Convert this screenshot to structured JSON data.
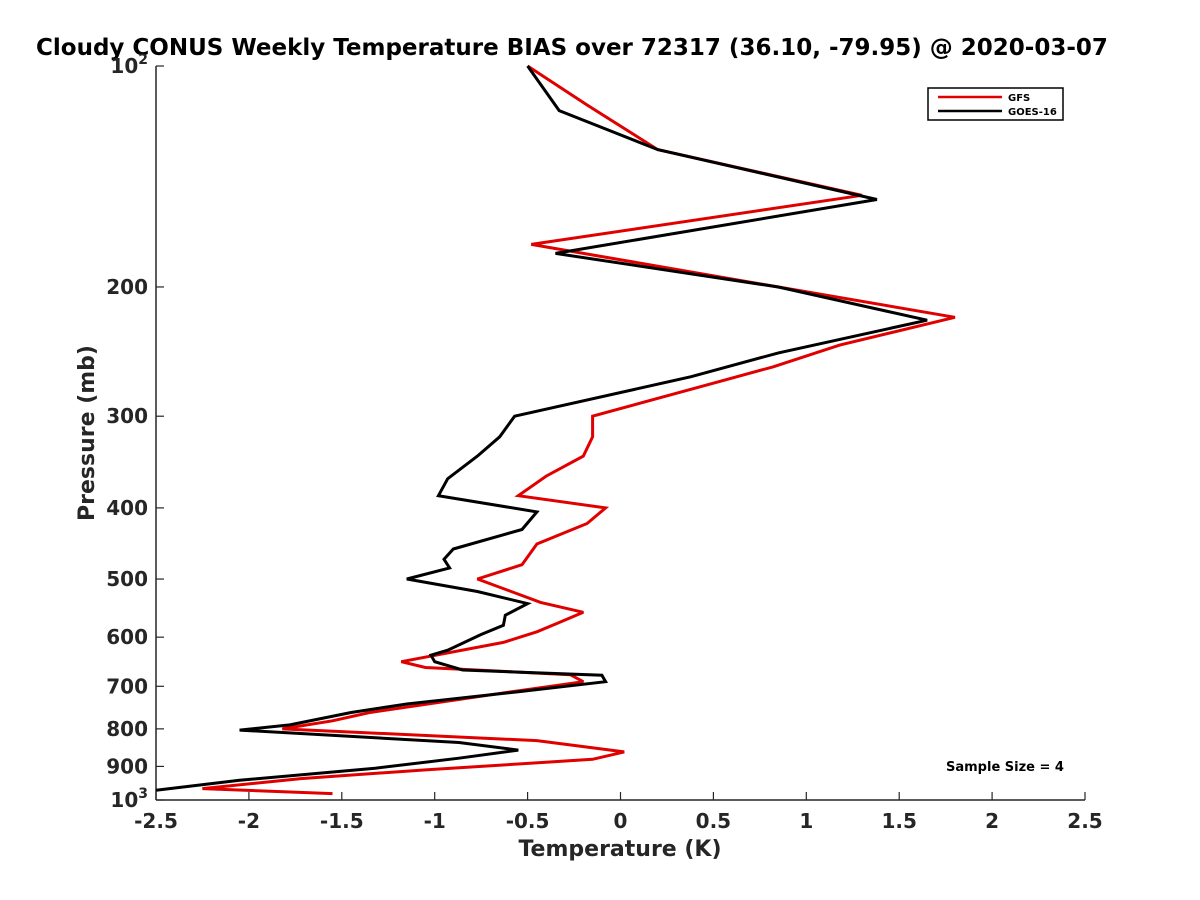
{
  "chart_data": {
    "type": "line",
    "title": "Cloudy CONUS Weekly Temperature BIAS over 72317 (36.10, -79.95) @ 2020-03-07",
    "xlabel": "Temperature (K)",
    "ylabel": "Pressure (mb)",
    "xlim": [
      -2.5,
      2.5
    ],
    "ylim": [
      100,
      1000
    ],
    "y_scale": "log",
    "y_reversed": true,
    "grid": false,
    "legend_position": "top-right",
    "x_ticks": [
      -2.5,
      -2,
      -1.5,
      -1,
      -0.5,
      0,
      0.5,
      1,
      1.5,
      2,
      2.5
    ],
    "x_tick_labels": [
      "-2.5",
      "-2",
      "-1.5",
      "-1",
      "-0.5",
      "0",
      "0.5",
      "1",
      "1.5",
      "2",
      "2.5"
    ],
    "y_ticks": [
      {
        "value": 100,
        "base": "10",
        "exp": "2"
      },
      {
        "value": 200,
        "label": "200"
      },
      {
        "value": 300,
        "label": "300"
      },
      {
        "value": 400,
        "label": "400"
      },
      {
        "value": 500,
        "label": "500"
      },
      {
        "value": 600,
        "label": "600"
      },
      {
        "value": 700,
        "label": "700"
      },
      {
        "value": 800,
        "label": "800"
      },
      {
        "value": 900,
        "label": "900"
      },
      {
        "value": 1000,
        "base": "10",
        "exp": "3"
      }
    ],
    "annotation": "Sample Size = 4",
    "series": [
      {
        "name": "GFS",
        "color": "#e00000",
        "points": [
          [
            -0.5,
            100
          ],
          [
            -0.18,
            113
          ],
          [
            0.2,
            130
          ],
          [
            1.3,
            150
          ],
          [
            -0.48,
            175
          ],
          [
            0.85,
            200
          ],
          [
            1.8,
            220
          ],
          [
            1.18,
            240
          ],
          [
            0.82,
            257
          ],
          [
            -0.15,
            300
          ],
          [
            -0.15,
            320
          ],
          [
            -0.2,
            340
          ],
          [
            -0.4,
            362
          ],
          [
            -0.55,
            385
          ],
          [
            -0.08,
            400
          ],
          [
            -0.18,
            420
          ],
          [
            -0.45,
            448
          ],
          [
            -0.53,
            478
          ],
          [
            -0.77,
            500
          ],
          [
            -0.43,
            538
          ],
          [
            -0.2,
            555
          ],
          [
            -0.33,
            573
          ],
          [
            -0.45,
            590
          ],
          [
            -0.63,
            610
          ],
          [
            -1.18,
            648
          ],
          [
            -1.05,
            660
          ],
          [
            -0.27,
            675
          ],
          [
            -0.2,
            690
          ],
          [
            -0.55,
            710
          ],
          [
            -1.35,
            760
          ],
          [
            -1.55,
            780
          ],
          [
            -1.82,
            800
          ],
          [
            -0.45,
            830
          ],
          [
            0.02,
            860
          ],
          [
            -0.15,
            880
          ],
          [
            -1.05,
            910
          ],
          [
            -1.72,
            935
          ],
          [
            -2.25,
            965
          ],
          [
            -1.55,
            980
          ]
        ]
      },
      {
        "name": "GOES-16",
        "color": "#000000",
        "points": [
          [
            -0.5,
            100
          ],
          [
            -0.33,
            115
          ],
          [
            0.2,
            130
          ],
          [
            1.38,
            152
          ],
          [
            -0.35,
            180
          ],
          [
            0.85,
            200
          ],
          [
            1.65,
            222
          ],
          [
            0.85,
            246
          ],
          [
            0.38,
            265
          ],
          [
            -0.57,
            300
          ],
          [
            -0.65,
            320
          ],
          [
            -0.77,
            340
          ],
          [
            -0.93,
            365
          ],
          [
            -0.98,
            385
          ],
          [
            -0.45,
            405
          ],
          [
            -0.53,
            428
          ],
          [
            -0.9,
            455
          ],
          [
            -0.95,
            470
          ],
          [
            -0.92,
            483
          ],
          [
            -1.15,
            500
          ],
          [
            -0.77,
            520
          ],
          [
            -0.5,
            540
          ],
          [
            -0.62,
            560
          ],
          [
            -0.63,
            578
          ],
          [
            -0.75,
            595
          ],
          [
            -0.93,
            625
          ],
          [
            -1.02,
            635
          ],
          [
            -1.0,
            648
          ],
          [
            -0.85,
            665
          ],
          [
            -0.1,
            676
          ],
          [
            -0.08,
            690
          ],
          [
            -0.55,
            712
          ],
          [
            -1.15,
            740
          ],
          [
            -1.45,
            760
          ],
          [
            -1.78,
            790
          ],
          [
            -2.05,
            803
          ],
          [
            -0.87,
            835
          ],
          [
            -0.55,
            855
          ],
          [
            -0.87,
            877
          ],
          [
            -1.32,
            905
          ],
          [
            -2.05,
            940
          ],
          [
            -2.5,
            970
          ]
        ]
      }
    ]
  }
}
